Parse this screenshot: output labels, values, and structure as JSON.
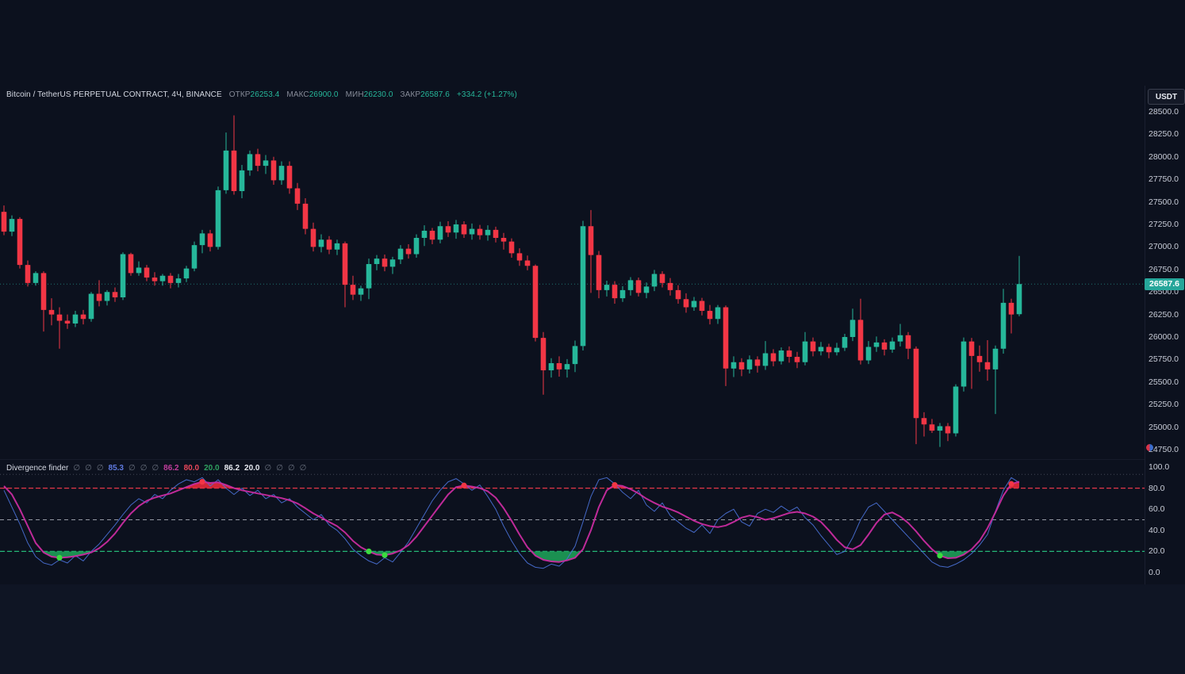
{
  "header": {
    "symbol": "Bitcoin / TetherUS PERPETUAL CONTRACT, 4Ч, BINANCE",
    "ohlc": [
      {
        "label": "ОТКР",
        "value": "26253.4"
      },
      {
        "label": "МАКС",
        "value": "26900.0"
      },
      {
        "label": "МИН",
        "value": "26230.0"
      },
      {
        "label": "ЗАКР",
        "value": "26587.6"
      }
    ],
    "change": "+334.2 (+1.27%)",
    "value_color": "#26b79a"
  },
  "price_scale": {
    "currency_button": "USDT",
    "ticks": [
      "28500.0",
      "28250.0",
      "28000.0",
      "27750.0",
      "27500.0",
      "27250.0",
      "27000.0",
      "26750.0",
      "26500.0",
      "26250.0",
      "26000.0",
      "25750.0",
      "25500.0",
      "25250.0",
      "25000.0",
      "24750.0"
    ],
    "last_price_label": "26587.6",
    "last_price_bg": "#26a69a"
  },
  "indicator_scale": {
    "ticks": [
      "100.0",
      "80.0",
      "60.0",
      "40.0",
      "20.0",
      "0.0"
    ]
  },
  "indicator_legend": {
    "name": "Divergence finder",
    "values": [
      {
        "text": "∅",
        "color": "#6b7280"
      },
      {
        "text": "∅",
        "color": "#6b7280"
      },
      {
        "text": "∅",
        "color": "#6b7280"
      },
      {
        "text": "85.3",
        "color": "#5f7ae0"
      },
      {
        "text": "∅",
        "color": "#6b7280"
      },
      {
        "text": "∅",
        "color": "#6b7280"
      },
      {
        "text": "∅",
        "color": "#6b7280"
      },
      {
        "text": "86.2",
        "color": "#c13d9c"
      },
      {
        "text": "80.0",
        "color": "#e8475a"
      },
      {
        "text": "20.0",
        "color": "#2fa05f"
      },
      {
        "text": "86.2",
        "color": "#e6e9f0"
      },
      {
        "text": "20.0",
        "color": "#e6e9f0"
      },
      {
        "text": "∅",
        "color": "#6b7280"
      },
      {
        "text": "∅",
        "color": "#6b7280"
      },
      {
        "text": "∅",
        "color": "#6b7280"
      },
      {
        "text": "∅",
        "color": "#6b7280"
      }
    ]
  },
  "theme": {
    "up_color": "#26b79a",
    "down_color": "#f23645",
    "price_line_color": "#26a69a",
    "blue_line": "#4a72d8",
    "pink_line": "#c92ca0",
    "red_fill": "#e8293a",
    "green_fill": "#1d9e57",
    "red_dot": "#f23645",
    "green_dot": "#3bdc3f"
  },
  "chart_data": {
    "type": "candlestick",
    "title": "Bitcoin / TetherUS PERPETUAL CONTRACT",
    "timeframe": "4Ч",
    "exchange": "BINANCE",
    "quote_currency": "USDT",
    "last_bar": {
      "open": 26253.4,
      "high": 26900.0,
      "low": 26230.0,
      "close": 26587.6,
      "change": "+334.2",
      "change_pct": "+1.27%"
    },
    "current_price": 26587.6,
    "price_axis_range": [
      24750,
      28500
    ],
    "price_axis_step": 250,
    "candles_ohlc": [
      [
        27390,
        27460,
        27130,
        27170
      ],
      [
        27170,
        27350,
        27120,
        27310
      ],
      [
        27310,
        27330,
        26760,
        26800
      ],
      [
        26800,
        26850,
        26560,
        26600
      ],
      [
        26600,
        26730,
        26570,
        26710
      ],
      [
        26710,
        26730,
        26060,
        26300
      ],
      [
        26300,
        26430,
        26130,
        26250
      ],
      [
        26250,
        26330,
        25870,
        26180
      ],
      [
        26180,
        26250,
        26090,
        26150
      ],
      [
        26150,
        26290,
        26110,
        26250
      ],
      [
        26250,
        26300,
        26140,
        26200
      ],
      [
        26200,
        26500,
        26170,
        26480
      ],
      [
        26480,
        26630,
        26340,
        26400
      ],
      [
        26400,
        26520,
        26350,
        26500
      ],
      [
        26500,
        26550,
        26390,
        26440
      ],
      [
        26440,
        26940,
        26410,
        26920
      ],
      [
        26920,
        26935,
        26680,
        26710
      ],
      [
        26710,
        26840,
        26680,
        26770
      ],
      [
        26770,
        26800,
        26620,
        26660
      ],
      [
        26660,
        26720,
        26570,
        26620
      ],
      [
        26620,
        26700,
        26570,
        26680
      ],
      [
        26680,
        26710,
        26540,
        26600
      ],
      [
        26600,
        26700,
        26550,
        26650
      ],
      [
        26650,
        26790,
        26610,
        26760
      ],
      [
        26760,
        27060,
        26730,
        27020
      ],
      [
        27020,
        27190,
        26930,
        27150
      ],
      [
        27150,
        27190,
        26950,
        27000
      ],
      [
        27000,
        27670,
        26970,
        27630
      ],
      [
        27630,
        28270,
        27590,
        28070
      ],
      [
        28070,
        28460,
        27580,
        27620
      ],
      [
        27620,
        27910,
        27540,
        27850
      ],
      [
        27850,
        28070,
        27790,
        28030
      ],
      [
        28030,
        28090,
        27840,
        27900
      ],
      [
        27900,
        28020,
        27810,
        27960
      ],
      [
        27960,
        28000,
        27690,
        27740
      ],
      [
        27740,
        27950,
        27690,
        27900
      ],
      [
        27900,
        27950,
        27590,
        27650
      ],
      [
        27650,
        27710,
        27410,
        27480
      ],
      [
        27480,
        27540,
        27140,
        27200
      ],
      [
        27200,
        27270,
        26950,
        27000
      ],
      [
        27000,
        27140,
        26940,
        27080
      ],
      [
        27080,
        27120,
        26920,
        26970
      ],
      [
        26970,
        27080,
        26910,
        27040
      ],
      [
        27040,
        27060,
        26330,
        26580
      ],
      [
        26580,
        26680,
        26410,
        26470
      ],
      [
        26470,
        26570,
        26400,
        26540
      ],
      [
        26540,
        26870,
        26420,
        26810
      ],
      [
        26810,
        26910,
        26740,
        26870
      ],
      [
        26870,
        26915,
        26730,
        26780
      ],
      [
        26780,
        26890,
        26700,
        26860
      ],
      [
        26860,
        27020,
        26810,
        26980
      ],
      [
        26980,
        27030,
        26870,
        26920
      ],
      [
        26920,
        27140,
        26880,
        27100
      ],
      [
        27100,
        27240,
        27010,
        27180
      ],
      [
        27180,
        27210,
        27030,
        27080
      ],
      [
        27080,
        27280,
        27040,
        27230
      ],
      [
        27230,
        27285,
        27110,
        27160
      ],
      [
        27160,
        27300,
        27090,
        27250
      ],
      [
        27250,
        27285,
        27100,
        27140
      ],
      [
        27140,
        27260,
        27080,
        27200
      ],
      [
        27200,
        27245,
        27080,
        27130
      ],
      [
        27130,
        27240,
        27070,
        27190
      ],
      [
        27190,
        27225,
        27050,
        27100
      ],
      [
        27100,
        27155,
        26970,
        27060
      ],
      [
        27060,
        27095,
        26880,
        26930
      ],
      [
        26930,
        26985,
        26790,
        26850
      ],
      [
        26850,
        26905,
        26740,
        26790
      ],
      [
        26790,
        26805,
        25950,
        25990
      ],
      [
        25990,
        26055,
        25360,
        25630
      ],
      [
        25630,
        25765,
        25550,
        25710
      ],
      [
        25710,
        25785,
        25560,
        25640
      ],
      [
        25640,
        25755,
        25550,
        25700
      ],
      [
        25700,
        25960,
        25610,
        25900
      ],
      [
        25900,
        27290,
        25850,
        27230
      ],
      [
        27230,
        27410,
        26490,
        26910
      ],
      [
        26910,
        26955,
        26430,
        26520
      ],
      [
        26520,
        26625,
        26450,
        26580
      ],
      [
        26580,
        26620,
        26370,
        26430
      ],
      [
        26430,
        26565,
        26390,
        26520
      ],
      [
        26520,
        26665,
        26460,
        26630
      ],
      [
        26630,
        26660,
        26450,
        26490
      ],
      [
        26490,
        26605,
        26430,
        26560
      ],
      [
        26560,
        26745,
        26510,
        26700
      ],
      [
        26700,
        26730,
        26550,
        26600
      ],
      [
        26600,
        26655,
        26460,
        26520
      ],
      [
        26520,
        26575,
        26370,
        26420
      ],
      [
        26420,
        26485,
        26270,
        26330
      ],
      [
        26330,
        26445,
        26290,
        26400
      ],
      [
        26400,
        26435,
        26240,
        26290
      ],
      [
        26290,
        26355,
        26140,
        26200
      ],
      [
        26200,
        26355,
        26145,
        26330
      ],
      [
        26330,
        26350,
        25455,
        25650
      ],
      [
        25650,
        25785,
        25555,
        25720
      ],
      [
        25720,
        25765,
        25565,
        25640
      ],
      [
        25640,
        25795,
        25595,
        25750
      ],
      [
        25750,
        25785,
        25605,
        25680
      ],
      [
        25680,
        25955,
        25635,
        25820
      ],
      [
        25820,
        25865,
        25675,
        25730
      ],
      [
        25730,
        25885,
        25695,
        25850
      ],
      [
        25850,
        25895,
        25715,
        25780
      ],
      [
        25780,
        25835,
        25655,
        25720
      ],
      [
        25720,
        26055,
        25685,
        25950
      ],
      [
        25950,
        25995,
        25785,
        25840
      ],
      [
        25840,
        25945,
        25795,
        25890
      ],
      [
        25890,
        25925,
        25765,
        25830
      ],
      [
        25830,
        25935,
        25795,
        25880
      ],
      [
        25880,
        26035,
        25845,
        26000
      ],
      [
        26000,
        26315,
        25955,
        26190
      ],
      [
        26190,
        26425,
        25695,
        25740
      ],
      [
        25740,
        25955,
        25700,
        25890
      ],
      [
        25890,
        26005,
        25835,
        25940
      ],
      [
        25940,
        25975,
        25795,
        25860
      ],
      [
        25860,
        25995,
        25825,
        25950
      ],
      [
        25950,
        26145,
        25895,
        26020
      ],
      [
        26020,
        26055,
        25755,
        25870
      ],
      [
        25870,
        25895,
        24810,
        25100
      ],
      [
        25100,
        25165,
        24895,
        25030
      ],
      [
        25030,
        25090,
        24935,
        24960
      ],
      [
        24960,
        25045,
        24780,
        25010
      ],
      [
        25010,
        25045,
        24845,
        24930
      ],
      [
        24930,
        25475,
        24895,
        25450
      ],
      [
        25450,
        25995,
        25395,
        25950
      ],
      [
        25950,
        25990,
        25425,
        25790
      ],
      [
        25790,
        25905,
        25615,
        25720
      ],
      [
        25720,
        25965,
        25515,
        25640
      ],
      [
        25640,
        25905,
        25145,
        25870
      ],
      [
        25870,
        26535,
        25815,
        26380
      ],
      [
        26380,
        26425,
        26040,
        26250
      ],
      [
        26253.4,
        26900,
        26230,
        26587.6
      ]
    ],
    "indicator": {
      "name": "Divergence finder",
      "ylim": [
        0,
        100
      ],
      "levels": [
        {
          "value": 93,
          "color": "#5a5f6e",
          "dash": "1,3",
          "width": 1,
          "opacity": 0.7
        },
        {
          "value": 80,
          "color": "#ef3a4d",
          "dash": "6,3",
          "width": 1.3,
          "opacity": 0.95
        },
        {
          "value": 50,
          "color": "#aeb2bd",
          "dash": "5,4",
          "width": 1,
          "opacity": 0.85
        },
        {
          "value": 20,
          "color": "#27c17f",
          "dash": "6,3",
          "width": 1.3,
          "opacity": 0.95
        }
      ],
      "series": [
        {
          "name": "fast",
          "values": [
            78,
            62,
            46,
            28,
            15,
            9,
            7,
            12,
            9,
            16,
            11,
            20,
            27,
            36,
            45,
            55,
            64,
            70,
            66,
            74,
            70,
            78,
            84,
            88,
            86,
            90,
            82,
            88,
            80,
            74,
            80,
            73,
            78,
            70,
            74,
            66,
            70,
            62,
            56,
            50,
            55,
            45,
            40,
            32,
            22,
            16,
            11,
            8,
            14,
            10,
            19,
            29,
            42,
            55,
            68,
            78,
            86,
            89,
            84,
            78,
            83,
            72,
            60,
            44,
            30,
            18,
            9,
            5,
            4,
            8,
            6,
            13,
            25,
            48,
            72,
            88,
            90,
            84,
            76,
            70,
            78,
            64,
            58,
            66,
            54,
            48,
            42,
            38,
            45,
            37,
            50,
            56,
            60,
            48,
            44,
            56,
            60,
            57,
            63,
            58,
            62,
            52,
            45,
            35,
            26,
            17,
            20,
            33,
            50,
            62,
            66,
            58,
            50,
            42,
            34,
            26,
            18,
            10,
            6,
            5,
            8,
            12,
            18,
            26,
            36,
            58,
            78,
            90,
            85.3
          ]
        },
        {
          "name": "smooth",
          "values": [
            82,
            74,
            60,
            44,
            28,
            19,
            15,
            14,
            14.5,
            15.5,
            17,
            19,
            23,
            29,
            37,
            47,
            56,
            63,
            68,
            71,
            73,
            75,
            78,
            81,
            84,
            86,
            85,
            85.5,
            83,
            80,
            78,
            76.5,
            75,
            73.5,
            72,
            70.5,
            68.5,
            65.5,
            61,
            56,
            52,
            48,
            44,
            38,
            30,
            24,
            20,
            17,
            16.5,
            18,
            21,
            26,
            34,
            44,
            54,
            64,
            74,
            81,
            82.5,
            81.5,
            80,
            77,
            71,
            61,
            49,
            36,
            24,
            16,
            12,
            10.5,
            10,
            11.5,
            14,
            22,
            40,
            62,
            78,
            83,
            82,
            79,
            75,
            70,
            66,
            62.5,
            60,
            57,
            53,
            49,
            46,
            44,
            43,
            44.5,
            48,
            52,
            54,
            52.5,
            50,
            51.5,
            54,
            56.5,
            57.5,
            56,
            53,
            48,
            40,
            31,
            24,
            22,
            26,
            36,
            47,
            55,
            57,
            53,
            47,
            39,
            30,
            22,
            16,
            13.5,
            14,
            17,
            22,
            30,
            42,
            57,
            73,
            84,
            86.2
          ]
        }
      ],
      "red_dot_indices": [
        25,
        58,
        77,
        127
      ],
      "green_dot_indices": [
        7,
        46,
        48,
        118
      ],
      "overbought_fill_above": 80,
      "oversold_fill_below": 20
    }
  }
}
